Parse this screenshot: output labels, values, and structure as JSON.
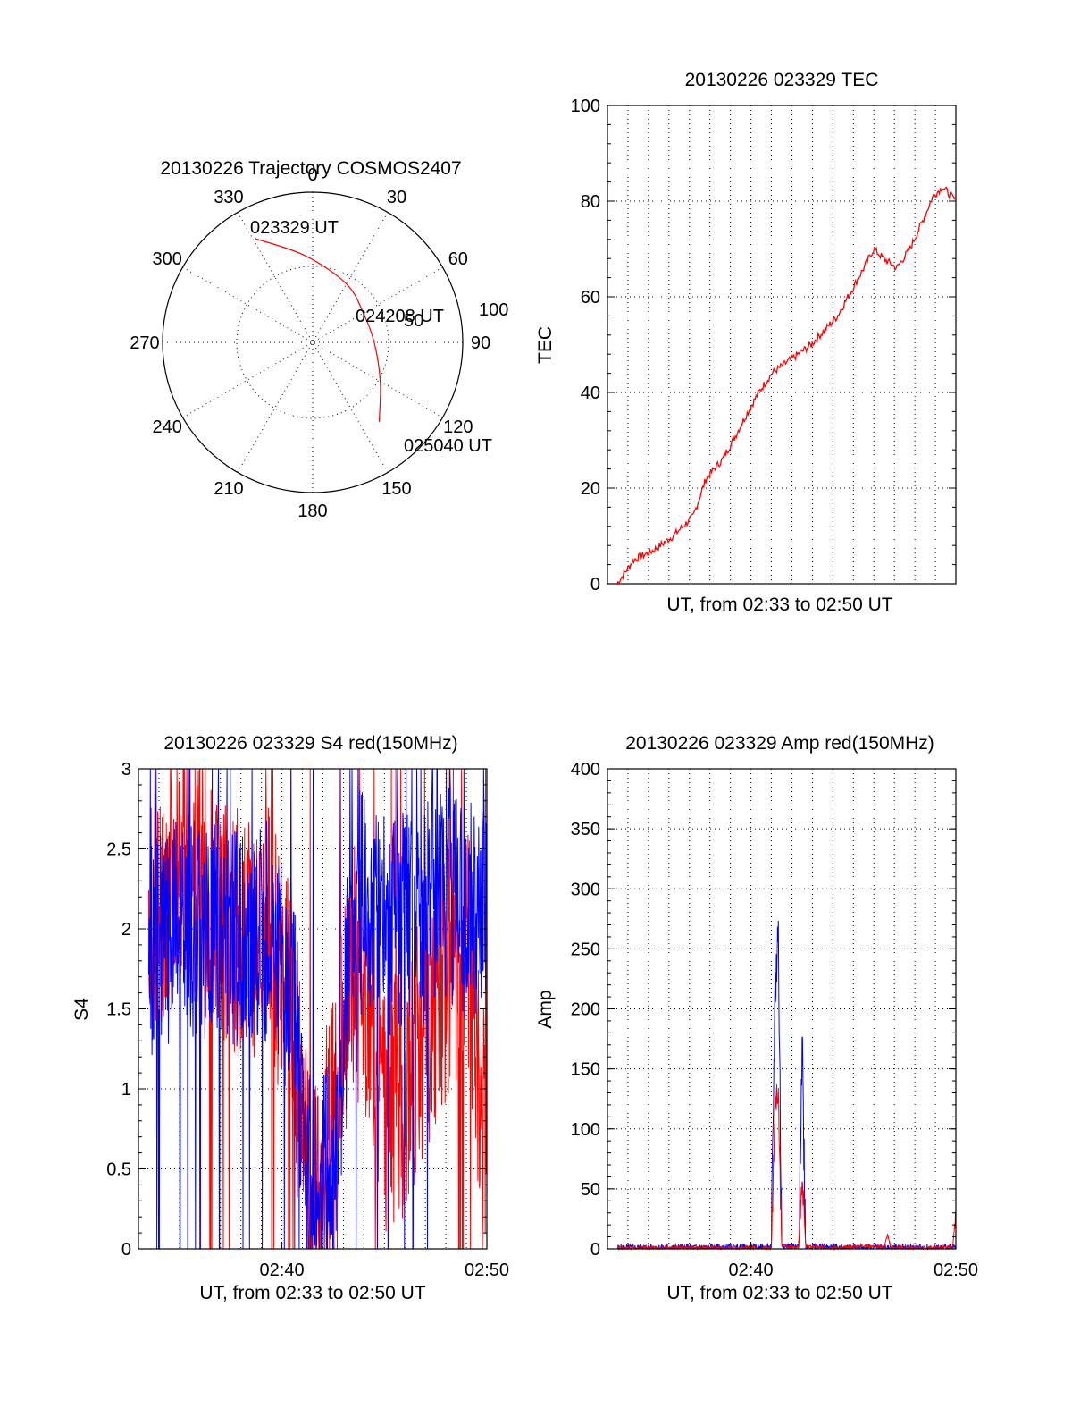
{
  "colors": {
    "red": "#ff0000",
    "blue": "#0000ff"
  },
  "chart_data": [
    {
      "type": "polar",
      "title": "20130226 Trajectory COSMOS2407",
      "angle_labels": [
        "0",
        "30",
        "60",
        "90",
        "120",
        "150",
        "180",
        "210",
        "240",
        "270",
        "300",
        "330"
      ],
      "radial_labels": [
        "50",
        "100"
      ],
      "rlim": [
        0,
        100
      ],
      "series": [
        {
          "values_r_theta": [
            [
              79,
              331
            ],
            [
              58,
              355
            ],
            [
              45,
              30
            ],
            [
              39,
              60
            ],
            [
              41,
              90
            ],
            [
              52,
              120
            ],
            [
              69,
              140
            ]
          ]
        }
      ],
      "annotations": [
        "023329 UT",
        "024208 UT",
        "025040 UT"
      ]
    },
    {
      "type": "line",
      "title": "20130226 023329 TEC",
      "xlabel": "UT, from 02:33 to 02:50 UT",
      "ylabel": "TEC",
      "xlim": [
        "02:33:00",
        "02:50:40"
      ],
      "ylim": [
        0,
        100
      ],
      "yticks": [
        "0",
        "20",
        "40",
        "60",
        "80",
        "100"
      ],
      "grid": true,
      "series": [
        {
          "x": [
            "02:33:29",
            "02:34:20",
            "02:35:20",
            "02:36:20",
            "02:37:20",
            "02:38:00",
            "02:38:50",
            "02:39:30",
            "02:40:00",
            "02:40:40",
            "02:41:20",
            "02:42:00",
            "02:42:40",
            "02:43:20",
            "02:44:00",
            "02:44:40",
            "02:45:20",
            "02:46:00",
            "02:46:30",
            "02:47:00",
            "02:47:40",
            "02:48:20",
            "02:49:00",
            "02:49:30",
            "02:50:00",
            "02:50:40"
          ],
          "values": [
            0,
            5,
            7,
            10,
            14,
            22,
            26,
            31,
            35,
            40,
            44,
            46,
            48,
            50,
            53,
            56,
            61,
            66,
            70,
            68,
            66,
            70,
            76,
            81,
            83,
            80
          ]
        }
      ]
    },
    {
      "type": "line",
      "title": "20130226 023329 S4 red(150MHz)",
      "xlabel": "UT, from 02:33 to 02:50 UT",
      "ylabel": "S4",
      "xlim": [
        "02:33:00",
        "02:50:00"
      ],
      "ylim": [
        0,
        3
      ],
      "xticks": [
        "02:40",
        "02:50"
      ],
      "yticks": [
        "0",
        "0.5",
        "1",
        "1.5",
        "2",
        "2.5",
        "3"
      ],
      "grid": true,
      "series": [
        {
          "x": [
            "02:33:30",
            "02:35:00",
            "02:37:00",
            "02:38:30",
            "02:39:30",
            "02:40:30",
            "02:41:00",
            "02:41:30",
            "02:42:00",
            "02:42:30",
            "02:43:30",
            "02:44:30",
            "02:45:00",
            "02:46:00",
            "02:47:00",
            "02:48:00",
            "02:49:00",
            "02:50:00"
          ],
          "values": [
            2.0,
            2.4,
            2.1,
            1.9,
            2.0,
            1.4,
            0.7,
            0.3,
            0.6,
            0.8,
            1.8,
            1.4,
            0.9,
            1.0,
            1.4,
            1.7,
            2.0,
            0.5
          ]
        },
        {
          "x": [
            "02:33:30",
            "02:35:00",
            "02:37:00",
            "02:38:30",
            "02:39:30",
            "02:40:30",
            "02:41:00",
            "02:41:30",
            "02:42:00",
            "02:42:30",
            "02:43:30",
            "02:44:30",
            "02:45:00",
            "02:46:00",
            "02:47:00",
            "02:48:00",
            "02:49:00",
            "02:50:00"
          ],
          "values": [
            1.9,
            2.0,
            2.0,
            1.9,
            2.0,
            1.6,
            0.9,
            0.2,
            0.6,
            0.4,
            2.2,
            2.1,
            2.0,
            2.1,
            2.1,
            2.2,
            2.1,
            2.2
          ]
        }
      ]
    },
    {
      "type": "line",
      "title": "20130226 023329 Amp red(150MHz)",
      "xlabel": "UT, from 02:33 to 02:50 UT",
      "ylabel": "Amp",
      "xlim": [
        "02:33:00",
        "02:50:00"
      ],
      "ylim": [
        0,
        400
      ],
      "xticks": [
        "02:40",
        "02:50"
      ],
      "yticks": [
        "0",
        "50",
        "100",
        "150",
        "200",
        "250",
        "300",
        "350",
        "400"
      ],
      "grid": true,
      "series": [
        {
          "x": [
            "02:33:30",
            "02:41:00",
            "02:41:10",
            "02:41:20",
            "02:41:30",
            "02:42:20",
            "02:42:30",
            "02:42:40",
            "02:44:30",
            "02:45:30",
            "02:46:30",
            "02:46:40",
            "02:46:50",
            "02:49:50",
            "02:50:00"
          ],
          "values": [
            1,
            1,
            120,
            125,
            3,
            1,
            65,
            2,
            1,
            3,
            1,
            12,
            1,
            1,
            30
          ]
        },
        {
          "x": [
            "02:33:30",
            "02:41:00",
            "02:41:10",
            "02:41:20",
            "02:41:30",
            "02:42:20",
            "02:42:30",
            "02:42:40",
            "02:44:30",
            "02:45:30",
            "02:46:30",
            "02:50:00"
          ],
          "values": [
            1,
            1,
            210,
            270,
            3,
            1,
            180,
            2,
            1,
            1,
            1,
            1
          ]
        }
      ]
    }
  ]
}
